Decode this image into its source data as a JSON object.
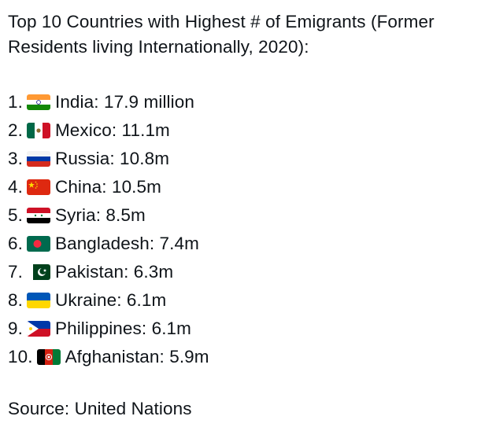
{
  "post": {
    "title": "Top 10 Countries with Highest # of Emigrants (Former Residents living Internationally, 2020):",
    "items": [
      {
        "rank": "1.",
        "flag": "india-flag-icon",
        "text": "India: 17.9 million"
      },
      {
        "rank": "2.",
        "flag": "mexico-flag-icon",
        "text": "Mexico: 11.1m"
      },
      {
        "rank": "3.",
        "flag": "russia-flag-icon",
        "text": "Russia: 10.8m"
      },
      {
        "rank": "4.",
        "flag": "china-flag-icon",
        "text": "China: 10.5m"
      },
      {
        "rank": "5.",
        "flag": "syria-flag-icon",
        "text": "Syria: 8.5m"
      },
      {
        "rank": "6.",
        "flag": "bangladesh-flag-icon",
        "text": "Bangladesh: 7.4m"
      },
      {
        "rank": "7.",
        "flag": "pakistan-flag-icon",
        "text": "Pakistan: 6.3m"
      },
      {
        "rank": "8.",
        "flag": "ukraine-flag-icon",
        "text": "Ukraine: 6.1m"
      },
      {
        "rank": "9.",
        "flag": "philippines-flag-icon",
        "text": "Philippines: 6.1m"
      },
      {
        "rank": "10.",
        "flag": "afghanistan-flag-icon",
        "text": "Afghanistan: 5.9m"
      }
    ],
    "source": "Source: United Nations"
  }
}
